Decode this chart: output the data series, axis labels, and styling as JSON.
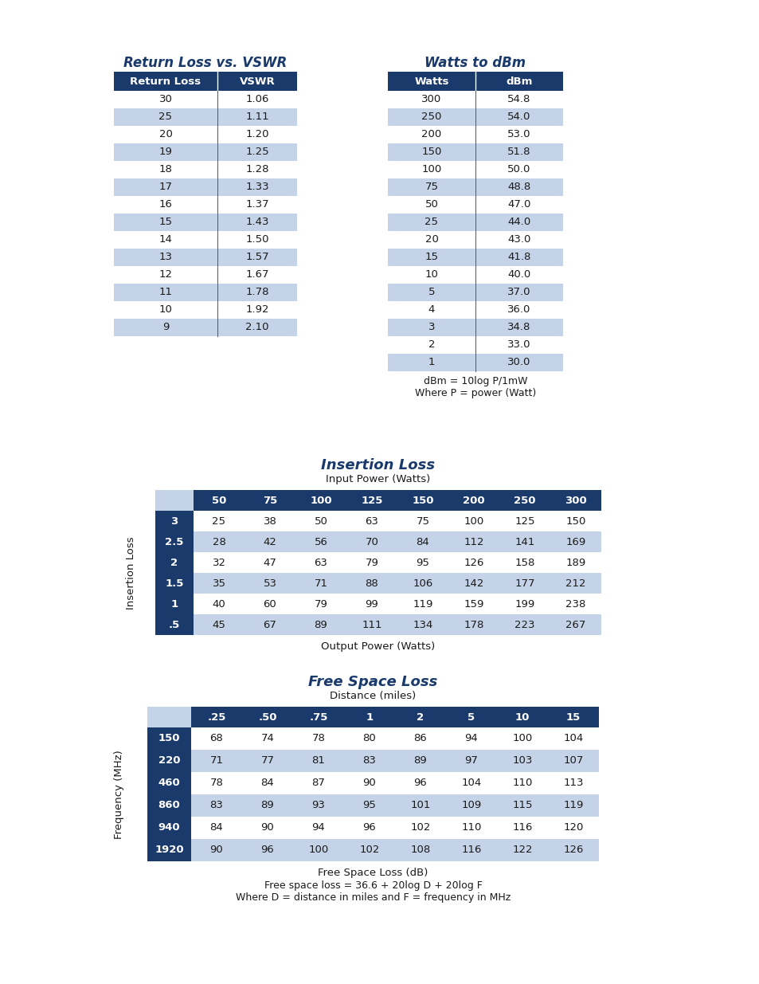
{
  "page_bg": "#ffffff",
  "header_bg": "#1a3a6b",
  "header_text": "#ffffff",
  "row_alt_bg": "#c5d3e8",
  "row_white_bg": "#ffffff",
  "title_color": "#1a3a6b",
  "body_text_color": "#1a1a1a",
  "rl_title": "Return Loss vs. VSWR",
  "rl_headers": [
    "Return Loss",
    "VSWR"
  ],
  "rl_data": [
    [
      "30",
      "1.06"
    ],
    [
      "25",
      "1.11"
    ],
    [
      "20",
      "1.20"
    ],
    [
      "19",
      "1.25"
    ],
    [
      "18",
      "1.28"
    ],
    [
      "17",
      "1.33"
    ],
    [
      "16",
      "1.37"
    ],
    [
      "15",
      "1.43"
    ],
    [
      "14",
      "1.50"
    ],
    [
      "13",
      "1.57"
    ],
    [
      "12",
      "1.67"
    ],
    [
      "11",
      "1.78"
    ],
    [
      "10",
      "1.92"
    ],
    [
      "9",
      "2.10"
    ]
  ],
  "rl_shaded": [
    1,
    3,
    5,
    7,
    9,
    11,
    13
  ],
  "watts_title": "Watts to dBm",
  "watts_headers": [
    "Watts",
    "dBm"
  ],
  "watts_data": [
    [
      "300",
      "54.8"
    ],
    [
      "250",
      "54.0"
    ],
    [
      "200",
      "53.0"
    ],
    [
      "150",
      "51.8"
    ],
    [
      "100",
      "50.0"
    ],
    [
      "75",
      "48.8"
    ],
    [
      "50",
      "47.0"
    ],
    [
      "25",
      "44.0"
    ],
    [
      "20",
      "43.0"
    ],
    [
      "15",
      "41.8"
    ],
    [
      "10",
      "40.0"
    ],
    [
      "5",
      "37.0"
    ],
    [
      "4",
      "36.0"
    ],
    [
      "3",
      "34.8"
    ],
    [
      "2",
      "33.0"
    ],
    [
      "1",
      "30.0"
    ]
  ],
  "watts_shaded": [
    1,
    3,
    5,
    7,
    9,
    11,
    13,
    15
  ],
  "watts_note1": "dBm = 10log P/1mW",
  "watts_note2": "Where P = power (Watt)",
  "il_title": "Insertion Loss",
  "il_subtitle": "Input Power (Watts)",
  "il_col_headers": [
    "50",
    "75",
    "100",
    "125",
    "150",
    "200",
    "250",
    "300"
  ],
  "il_row_headers": [
    "3",
    "2.5",
    "2",
    "1.5",
    "1",
    ".5"
  ],
  "il_data": [
    [
      25,
      38,
      50,
      63,
      75,
      100,
      125,
      150
    ],
    [
      28,
      42,
      56,
      70,
      84,
      112,
      141,
      169
    ],
    [
      32,
      47,
      63,
      79,
      95,
      126,
      158,
      189
    ],
    [
      35,
      53,
      71,
      88,
      106,
      142,
      177,
      212
    ],
    [
      40,
      60,
      79,
      99,
      119,
      159,
      199,
      238
    ],
    [
      45,
      67,
      89,
      111,
      134,
      178,
      223,
      267
    ]
  ],
  "il_row_shaded": [
    1,
    3,
    5
  ],
  "il_ylabel": "Insertion Loss",
  "il_xlabel": "Output Power (Watts)",
  "fsl_title": "Free Space Loss",
  "fsl_subtitle": "Distance (miles)",
  "fsl_col_headers": [
    ".25",
    ".50",
    ".75",
    "1",
    "2",
    "5",
    "10",
    "15"
  ],
  "fsl_row_headers": [
    "150",
    "220",
    "460",
    "860",
    "940",
    "1920"
  ],
  "fsl_data": [
    [
      68,
      74,
      78,
      80,
      86,
      94,
      100,
      104
    ],
    [
      71,
      77,
      81,
      83,
      89,
      97,
      103,
      107
    ],
    [
      78,
      84,
      87,
      90,
      96,
      104,
      110,
      113
    ],
    [
      83,
      89,
      93,
      95,
      101,
      109,
      115,
      119
    ],
    [
      84,
      90,
      94,
      96,
      102,
      110,
      116,
      120
    ],
    [
      90,
      96,
      100,
      102,
      108,
      116,
      122,
      126
    ]
  ],
  "fsl_row_shaded": [
    1,
    3,
    5
  ],
  "fsl_ylabel": "Frequency (MHz)",
  "fsl_xlabel": "Free Space Loss (dB)",
  "fsl_note1": "Free space loss = 36.6 + 20log D + 20log F",
  "fsl_note2": "Where D = distance in miles and F = frequency in MHz"
}
